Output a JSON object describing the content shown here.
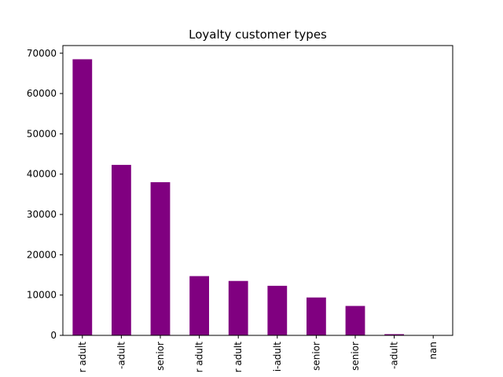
{
  "chart_data": {
    "type": "bar",
    "title": "Loyalty customer types",
    "xlabel": "",
    "ylabel": "",
    "categories": [
      "r adult",
      "-adult",
      "senior",
      "r adult",
      "r adult",
      "i-adult",
      "senior",
      "senior",
      "-adult",
      "nan"
    ],
    "values": [
      68500,
      42300,
      38000,
      14700,
      13500,
      12300,
      9400,
      7300,
      300,
      0
    ],
    "ylim": [
      0,
      71900
    ],
    "yticks": [
      0,
      10000,
      20000,
      30000,
      40000,
      50000,
      60000,
      70000
    ],
    "grid": false,
    "legend": null
  },
  "colors": {
    "bar": "#800080",
    "axis": "#000000",
    "background": "#ffffff"
  }
}
